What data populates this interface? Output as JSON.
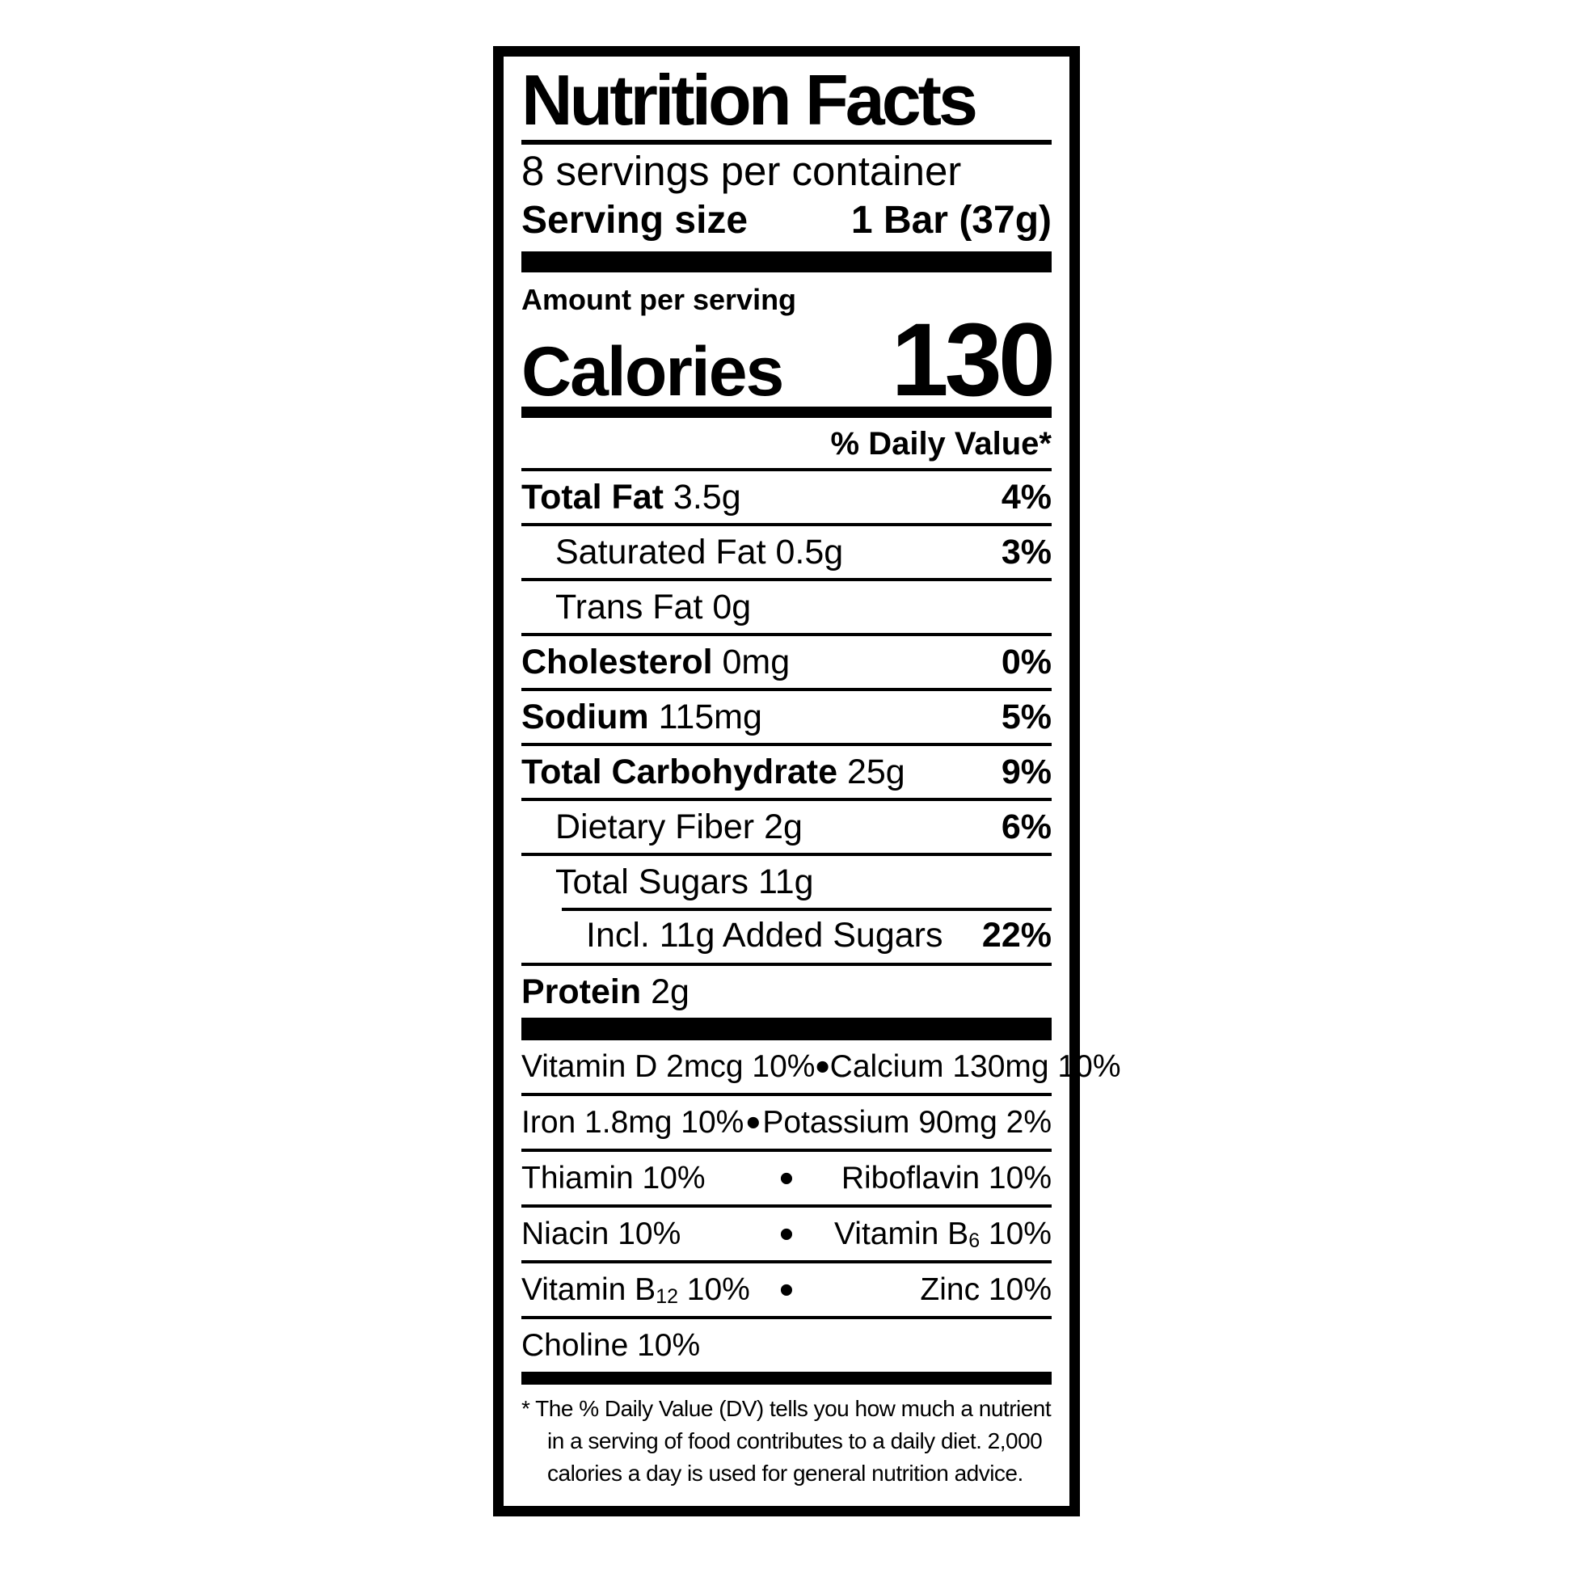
{
  "label": {
    "title": "Nutrition Facts",
    "servings_per_container": "8 servings per container",
    "serving_size_label": "Serving size",
    "serving_size_value": "1 Bar (37g)",
    "amount_per_serving": "Amount per serving",
    "calories_label": "Calories",
    "calories_value": "130",
    "daily_value_header": "% Daily Value*"
  },
  "nutrients": {
    "rows": [
      {
        "bold": "Total Fat",
        "reg": " 3.5g",
        "dv": "4%"
      },
      {
        "bold": "",
        "reg": "Saturated Fat 0.5g",
        "dv": "3%"
      },
      {
        "bold": "",
        "reg": "Trans Fat 0g",
        "dv": ""
      },
      {
        "bold": "Cholesterol",
        "reg": " 0mg",
        "dv": "0%"
      },
      {
        "bold": "Sodium",
        "reg": " 115mg",
        "dv": "5%"
      },
      {
        "bold": "Total Carbohydrate",
        "reg": " 25g",
        "dv": "9%"
      },
      {
        "bold": "",
        "reg": "Dietary Fiber 2g",
        "dv": "6%"
      },
      {
        "bold": "",
        "reg": "Total Sugars 11g",
        "dv": ""
      },
      {
        "bold": "",
        "reg": "Incl. 11g  Added Sugars",
        "dv": "22%"
      },
      {
        "bold": "Protein",
        "reg": " 2g",
        "dv": ""
      }
    ]
  },
  "vitamins": {
    "bullet": "•",
    "rows": [
      {
        "left": {
          "text": "Vitamin D 2mcg 10%"
        },
        "right": {
          "text": "Calcium 130mg 10%"
        }
      },
      {
        "left": {
          "text": "Iron 1.8mg 10%"
        },
        "right": {
          "text": "Potassium 90mg 2%"
        }
      },
      {
        "left": {
          "text": "Thiamin 10%"
        },
        "right": {
          "text": "Riboflavin 10%"
        }
      },
      {
        "left": {
          "text": "Niacin 10%"
        },
        "right": {
          "pre": "Vitamin B",
          "sub": "6",
          "post": " 10%"
        }
      },
      {
        "left": {
          "pre": "Vitamin B",
          "sub": "12",
          "post": " 10%"
        },
        "right": {
          "text": "Zinc 10%"
        }
      },
      {
        "left": {
          "text": "Choline 10%"
        }
      }
    ]
  },
  "footnote": {
    "lines": [
      "* The % Daily Value (DV) tells you how much a nutrient",
      "in a serving of food contributes to a daily diet. 2,000",
      "calories a day is used for general nutrition advice."
    ]
  },
  "colors": {
    "ink": "#000000",
    "background": "#ffffff"
  }
}
